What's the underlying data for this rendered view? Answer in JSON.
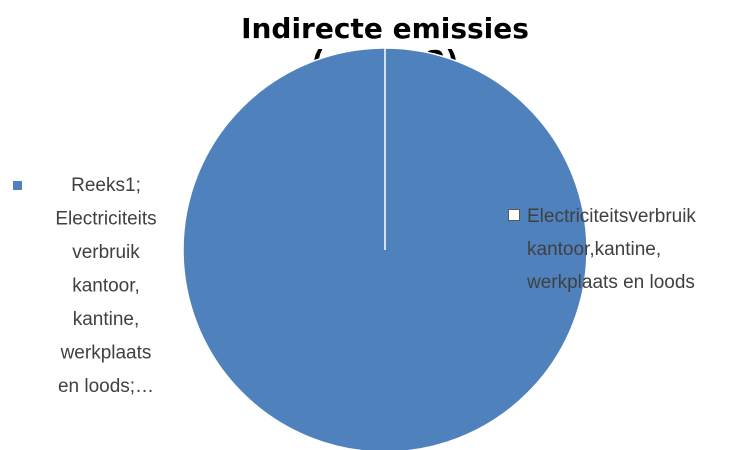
{
  "chart_data": {
    "type": "pie",
    "title": "Indirecte emissies (scope 2)",
    "categories": [
      "Electriciteitsverbruik kantoor,kantine, werkplaats en loods"
    ],
    "values": [
      100
    ],
    "colors": [
      "#4f81bd"
    ],
    "data_labels": [
      "Reeks1; Electriciteits verbruik kantoor, kantine, werkplaats en loods;…"
    ],
    "legend": "right"
  }
}
